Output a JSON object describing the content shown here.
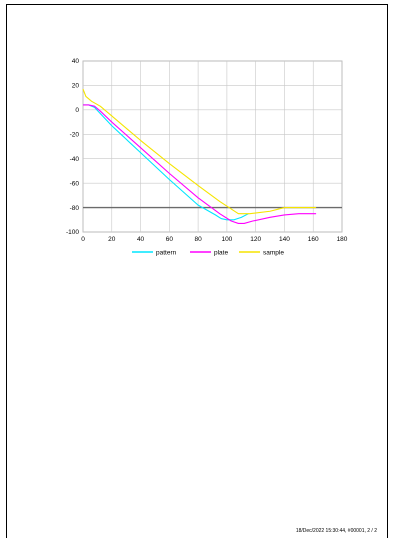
{
  "chart_data": {
    "type": "line",
    "xlim": [
      0,
      180
    ],
    "ylim": [
      -100,
      40
    ],
    "x_ticks": [
      0,
      20,
      40,
      60,
      80,
      100,
      120,
      140,
      160,
      180
    ],
    "y_ticks": [
      40,
      20,
      0,
      -20,
      -40,
      -60,
      -80,
      -100
    ],
    "grid": true,
    "reference_line_y": -80,
    "legend_placement": "bottom",
    "series": [
      {
        "name": "pattern",
        "color": "#00e5ff",
        "points": [
          [
            0,
            4
          ],
          [
            4,
            4
          ],
          [
            8,
            2
          ],
          [
            20,
            -13
          ],
          [
            40,
            -35
          ],
          [
            60,
            -57
          ],
          [
            80,
            -78
          ],
          [
            92,
            -86
          ],
          [
            96,
            -89
          ],
          [
            100,
            -90
          ],
          [
            105,
            -90
          ],
          [
            110,
            -88
          ],
          [
            115,
            -85
          ]
        ]
      },
      {
        "name": "plate",
        "color": "#ff00ff",
        "points": [
          [
            0,
            4
          ],
          [
            4,
            4
          ],
          [
            8,
            3
          ],
          [
            12,
            -1
          ],
          [
            20,
            -10
          ],
          [
            40,
            -31
          ],
          [
            60,
            -52
          ],
          [
            80,
            -72
          ],
          [
            95,
            -85
          ],
          [
            103,
            -91
          ],
          [
            108,
            -93
          ],
          [
            112,
            -93
          ],
          [
            118,
            -91
          ],
          [
            130,
            -88
          ],
          [
            140,
            -86
          ],
          [
            150,
            -85
          ],
          [
            162,
            -85
          ]
        ]
      },
      {
        "name": "sample",
        "color": "#f5e400",
        "points": [
          [
            0,
            17
          ],
          [
            2,
            11
          ],
          [
            6,
            7
          ],
          [
            12,
            3
          ],
          [
            20,
            -5
          ],
          [
            40,
            -25
          ],
          [
            60,
            -44
          ],
          [
            80,
            -62
          ],
          [
            95,
            -75
          ],
          [
            108,
            -85
          ],
          [
            116,
            -85
          ],
          [
            130,
            -83
          ],
          [
            140,
            -80
          ],
          [
            150,
            -80
          ],
          [
            162,
            -80
          ]
        ]
      }
    ]
  },
  "footer": {
    "stamp": "18/Dec/2022 15:30:44,  #00001,  2 / 2"
  }
}
